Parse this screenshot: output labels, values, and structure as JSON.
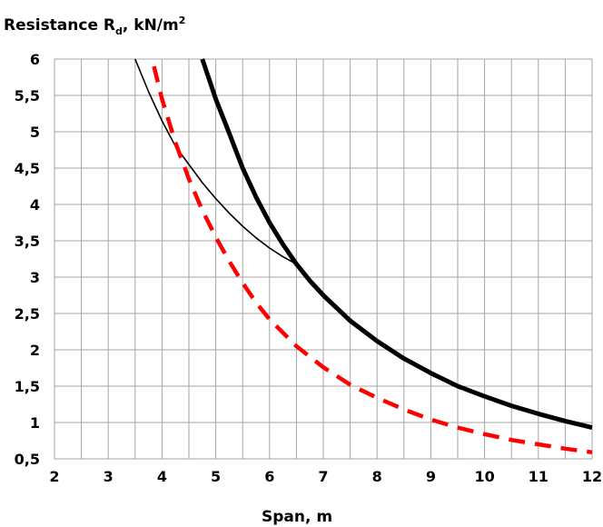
{
  "chart_data": {
    "type": "line",
    "title": "",
    "ylabel": {
      "main": "Resistance R",
      "sub": "d",
      "rest": ", kN/m",
      "sup": "2"
    },
    "xlabel": "Span, m",
    "xlim": [
      2,
      12
    ],
    "ylim": [
      0.5,
      6
    ],
    "x_ticks": [
      2,
      3,
      4,
      5,
      6,
      7,
      8,
      9,
      10,
      11,
      12
    ],
    "x_tick_labels": [
      "2",
      "3",
      "4",
      "5",
      "6",
      "7",
      "8",
      "9",
      "10",
      "11",
      "12"
    ],
    "x_minor_step": 0.5,
    "y_ticks": [
      0.5,
      1,
      1.5,
      2,
      2.5,
      3,
      3.5,
      4,
      4.5,
      5,
      5.5,
      6
    ],
    "y_tick_labels": [
      "0,5",
      "1",
      "1,5",
      "2",
      "2,5",
      "3",
      "3,5",
      "4",
      "4,5",
      "5",
      "5,5",
      "6"
    ],
    "grid": true,
    "legend": "none",
    "series": [
      {
        "style": "thin",
        "color": "#000000",
        "x": [
          3.5,
          3.75,
          4.0,
          4.25,
          4.5,
          4.75,
          5.0,
          5.25,
          5.5,
          5.75,
          6.0,
          6.25,
          6.45
        ],
        "y": [
          6.0,
          5.55,
          5.15,
          4.8,
          4.55,
          4.3,
          4.08,
          3.88,
          3.7,
          3.54,
          3.4,
          3.28,
          3.2
        ]
      },
      {
        "style": "thick",
        "color": "#000000",
        "x": [
          4.75,
          5.0,
          5.25,
          5.5,
          5.75,
          6.0,
          6.25,
          6.5,
          6.75,
          7.0,
          7.5,
          8.0,
          8.5,
          9.0,
          9.5,
          10.0,
          10.5,
          11.0,
          11.5,
          12.0
        ],
        "y": [
          6.0,
          5.45,
          4.98,
          4.5,
          4.1,
          3.75,
          3.45,
          3.18,
          2.95,
          2.75,
          2.4,
          2.12,
          1.88,
          1.68,
          1.5,
          1.36,
          1.23,
          1.12,
          1.02,
          0.93
        ]
      },
      {
        "style": "dashed",
        "color": "#ff0000",
        "x": [
          3.85,
          4.0,
          4.25,
          4.5,
          4.75,
          5.0,
          5.25,
          5.5,
          5.75,
          6.0,
          6.5,
          7.0,
          7.5,
          8.0,
          8.5,
          9.0,
          9.5,
          10.0,
          10.5,
          11.0,
          11.5,
          12.0
        ],
        "y": [
          5.9,
          5.45,
          4.85,
          4.35,
          3.92,
          3.55,
          3.22,
          2.92,
          2.65,
          2.42,
          2.05,
          1.76,
          1.52,
          1.34,
          1.18,
          1.04,
          0.93,
          0.84,
          0.76,
          0.7,
          0.64,
          0.59
        ]
      }
    ]
  }
}
